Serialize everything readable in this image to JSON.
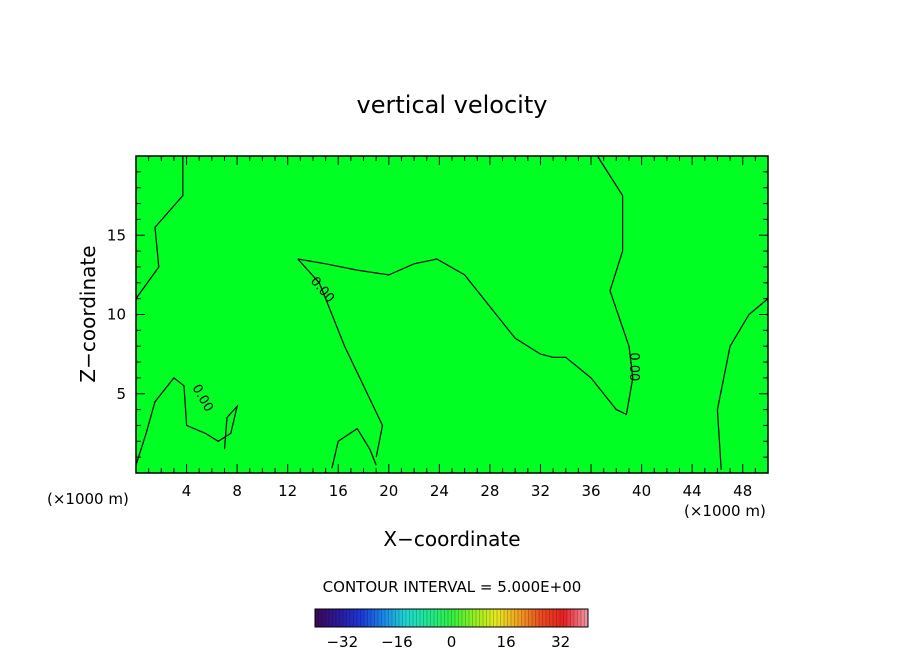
{
  "chart_data": {
    "type": "heatmap",
    "title": "vertical velocity",
    "xlabel": "X−coordinate",
    "ylabel": "Z−coordinate",
    "x_unit_left": "(×1000 m)",
    "x_unit_right": "(×1000 m)",
    "xlim": [
      0,
      50
    ],
    "ylim": [
      0,
      20
    ],
    "x_ticks": [
      4,
      8,
      12,
      16,
      20,
      24,
      28,
      32,
      36,
      40,
      44,
      48
    ],
    "y_ticks": [
      5,
      10,
      15
    ],
    "contour_interval_text": "CONTOUR INTERVAL = 5.000E+00",
    "contour_labels": [
      "0.00",
      "0.00",
      "0.00"
    ],
    "field_color": "#00ff22",
    "colorbar": {
      "range": [
        -40,
        40
      ],
      "tick_values": [
        -32,
        -16,
        0,
        16,
        32
      ],
      "tick_labels": [
        "−32",
        "−16",
        "0",
        "16",
        "32"
      ],
      "colors": [
        "#3a0a5a",
        "#2a1a9a",
        "#1a3ad8",
        "#1a8ae8",
        "#20d8d0",
        "#20e890",
        "#30f040",
        "#90f020",
        "#e8e820",
        "#f0a020",
        "#e84a20",
        "#e82020",
        "#f090a0"
      ]
    },
    "zero_contours": [
      [
        [
          3.7,
          20.0
        ],
        [
          3.7,
          17.5
        ],
        [
          1.5,
          15.5
        ],
        [
          1.8,
          13.0
        ],
        [
          0.0,
          11.0
        ]
      ],
      [
        [
          12.8,
          13.5
        ],
        [
          14.5,
          12.0
        ],
        [
          16.5,
          8.0
        ],
        [
          19.5,
          3.0
        ],
        [
          19.0,
          1.0
        ]
      ],
      [
        [
          12.8,
          13.5
        ],
        [
          15.0,
          13.2
        ],
        [
          17.5,
          12.8
        ],
        [
          20.0,
          12.5
        ],
        [
          22.0,
          13.2
        ],
        [
          23.8,
          13.5
        ],
        [
          26.0,
          12.5
        ],
        [
          28.0,
          10.5
        ],
        [
          30.0,
          8.5
        ],
        [
          32.0,
          7.5
        ],
        [
          33.0,
          7.3
        ],
        [
          34.0,
          7.3
        ],
        [
          36.0,
          6.0
        ],
        [
          38.0,
          4.0
        ],
        [
          38.8,
          3.7
        ],
        [
          39.3,
          6.0
        ],
        [
          39.0,
          8.0
        ],
        [
          37.5,
          11.5
        ],
        [
          38.5,
          14.0
        ],
        [
          38.5,
          17.5
        ],
        [
          36.5,
          20.0
        ]
      ],
      [
        [
          50.0,
          11.0
        ],
        [
          48.5,
          10.0
        ],
        [
          47.0,
          8.0
        ],
        [
          46.0,
          4.0
        ],
        [
          46.3,
          0.2
        ]
      ],
      [
        [
          0.0,
          0.5
        ],
        [
          0.8,
          2.5
        ],
        [
          1.5,
          4.5
        ],
        [
          3.0,
          6.0
        ],
        [
          3.8,
          5.5
        ],
        [
          4.0,
          3.0
        ],
        [
          5.5,
          2.5
        ],
        [
          6.5,
          2.0
        ],
        [
          7.5,
          2.5
        ],
        [
          8.0,
          4.2
        ],
        [
          7.2,
          3.5
        ],
        [
          7.0,
          1.5
        ]
      ],
      [
        [
          15.5,
          0.3
        ],
        [
          16.0,
          2.0
        ],
        [
          17.5,
          2.8
        ],
        [
          18.5,
          1.5
        ],
        [
          19.0,
          0.5
        ]
      ]
    ]
  }
}
